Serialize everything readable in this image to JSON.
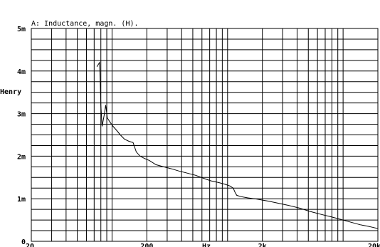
{
  "chart_data": {
    "type": "line",
    "title": "A: Inductance, magn. (H).",
    "ylabel": "Henry",
    "xlabel": "Hz",
    "x_scale": "log",
    "xlim": [
      20,
      20000
    ],
    "ylim": [
      0,
      0.005
    ],
    "grid": true,
    "y_ticks": [
      {
        "value": 0,
        "label": "0"
      },
      {
        "value": 0.001,
        "label": "1m"
      },
      {
        "value": 0.002,
        "label": "2m"
      },
      {
        "value": 0.003,
        "label": "3m"
      },
      {
        "value": 0.004,
        "label": "4m"
      },
      {
        "value": 0.005,
        "label": "5m"
      }
    ],
    "x_ticks": [
      {
        "value": 20,
        "label": "20"
      },
      {
        "value": 200,
        "label": "200"
      },
      {
        "value": 2000,
        "label": "2k"
      },
      {
        "value": 20000,
        "label": "20k"
      }
    ],
    "series": [
      {
        "color": "#000000",
        "points": [
          [
            74,
            0.0041
          ],
          [
            78,
            0.0042
          ],
          [
            79,
            0.0038
          ],
          [
            80,
            0.0032
          ],
          [
            82,
            0.0027
          ],
          [
            86,
            0.003
          ],
          [
            88,
            0.0032
          ],
          [
            91,
            0.0029
          ],
          [
            96,
            0.0028
          ],
          [
            102,
            0.0027
          ],
          [
            110,
            0.0026
          ],
          [
            118,
            0.0025
          ],
          [
            128,
            0.0024
          ],
          [
            140,
            0.00235
          ],
          [
            152,
            0.00232
          ],
          [
            162,
            0.0021
          ],
          [
            175,
            0.002
          ],
          [
            190,
            0.00195
          ],
          [
            210,
            0.0019
          ],
          [
            240,
            0.0018
          ],
          [
            280,
            0.00175
          ],
          [
            330,
            0.0017
          ],
          [
            380,
            0.00165
          ],
          [
            450,
            0.0016
          ],
          [
            530,
            0.00155
          ],
          [
            620,
            0.00148
          ],
          [
            720,
            0.00142
          ],
          [
            840,
            0.00138
          ],
          [
            950,
            0.00134
          ],
          [
            1050,
            0.0013
          ],
          [
            1120,
            0.00125
          ],
          [
            1160,
            0.00115
          ],
          [
            1200,
            0.00108
          ],
          [
            1300,
            0.00105
          ],
          [
            1500,
            0.00102
          ],
          [
            1800,
            0.00099
          ],
          [
            2200,
            0.00095
          ],
          [
            2700,
            0.0009
          ],
          [
            3300,
            0.00085
          ],
          [
            4200,
            0.00078
          ],
          [
            5200,
            0.0007
          ],
          [
            6500,
            0.00063
          ],
          [
            8000,
            0.00057
          ],
          [
            10000,
            0.0005
          ],
          [
            12000,
            0.00044
          ],
          [
            14000,
            0.00039
          ],
          [
            16000,
            0.00036
          ],
          [
            18000,
            0.00033
          ],
          [
            20000,
            0.0003
          ]
        ]
      }
    ]
  }
}
